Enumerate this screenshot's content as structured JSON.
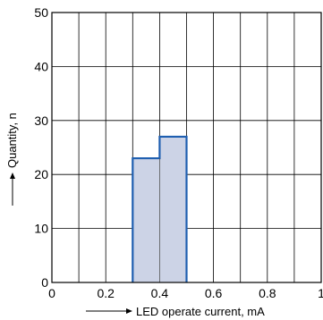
{
  "chart_data": {
    "type": "bar",
    "title": "",
    "xlabel": "LED operate current, mA",
    "ylabel": "Quantity, n",
    "xlim": [
      0,
      1
    ],
    "ylim": [
      0,
      50
    ],
    "x_ticks": [
      "0",
      "0.2",
      "0.4",
      "0.6",
      "0.8",
      "1"
    ],
    "y_ticks": [
      "0",
      "10",
      "20",
      "30",
      "40",
      "50"
    ],
    "grid": true,
    "bins": [
      {
        "x0": 0.3,
        "x1": 0.4,
        "value": 23
      },
      {
        "x0": 0.4,
        "x1": 0.5,
        "value": 27
      }
    ],
    "colors": {
      "fill": "#ccd3e6",
      "stroke": "#1f5fb0",
      "grid": "#000000"
    }
  }
}
